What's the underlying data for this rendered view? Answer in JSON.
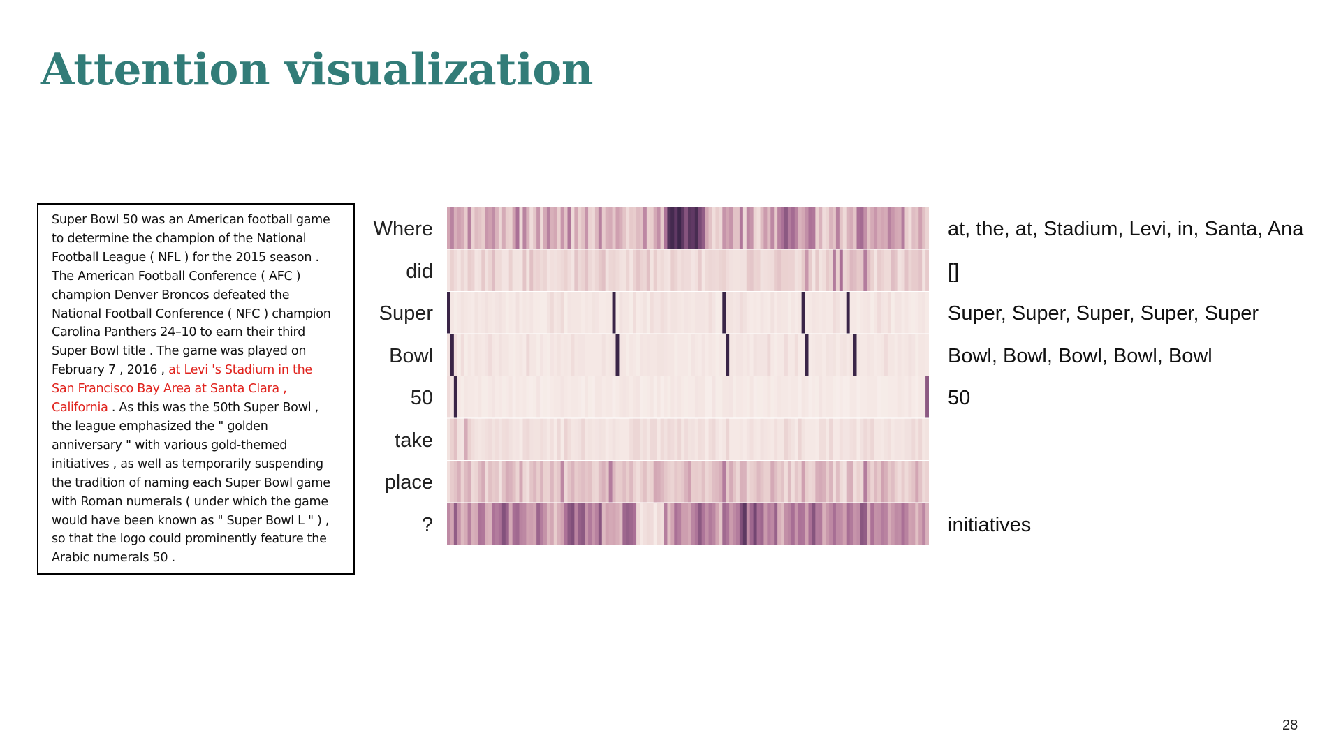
{
  "title": "Attention visualization",
  "page_number": "28",
  "colors": {
    "title": "#327c78",
    "highlight": "#e0231d",
    "heat_low": "#f8f0ec",
    "heat_high": "#2d1e3e"
  },
  "passage": {
    "lines": [
      [
        {
          "text": "Super Bowl 50 was an American football game"
        }
      ],
      [
        {
          "text": "to determine the champion of the National"
        }
      ],
      [
        {
          "text": "Football League ( NFL ) for the 2015 season ."
        }
      ],
      [
        {
          "text": "The American Football Conference ( AFC )"
        }
      ],
      [
        {
          "text": "champion Denver Broncos defeated the"
        }
      ],
      [
        {
          "text": "National Football Conference ( NFC ) champion"
        }
      ],
      [
        {
          "text": "Carolina Panthers 24–10 to earn their third"
        }
      ],
      [
        {
          "text": "Super Bowl title . The game was played on"
        }
      ],
      [
        {
          "text": "February 7 , 2016 , "
        },
        {
          "text": "at Levi 's Stadium in the",
          "hl": true
        }
      ],
      [
        {
          "text": "San Francisco Bay Area at Santa Clara ,",
          "hl": true
        }
      ],
      [
        {
          "text": "California",
          "hl": true
        },
        {
          "text": " . As this was the 50th Super Bowl ,"
        }
      ],
      [
        {
          "text": "the league emphasized the \" golden"
        }
      ],
      [
        {
          "text": "anniversary \" with various gold-themed"
        }
      ],
      [
        {
          "text": "initiatives , as well as temporarily suspending"
        }
      ],
      [
        {
          "text": "the tradition of naming each Super Bowl game"
        }
      ],
      [
        {
          "text": "with Roman numerals ( under which the game"
        }
      ],
      [
        {
          "text": "would have been known as \" Super Bowl L \" ) ,"
        }
      ],
      [
        {
          "text": "so that the logo could prominently feature the"
        }
      ],
      [
        {
          "text": "Arabic numerals 50 ."
        }
      ]
    ]
  },
  "question_words": [
    "Where",
    "did",
    "Super",
    "Bowl",
    "50",
    "take",
    "place",
    "?"
  ],
  "answers": [
    "at, the, at, Stadium, Levi, in, Santa, Ana",
    "[]",
    "Super, Super, Super, Super, Super",
    "Bowl, Bowl, Bowl, Bowl, Bowl",
    "50",
    "",
    "",
    "initiatives"
  ],
  "chart_data": {
    "type": "heatmap",
    "rows": [
      "Where",
      "did",
      "Super",
      "Bowl",
      "50",
      "take",
      "place",
      "?"
    ],
    "n_columns": 140,
    "value_range": [
      0,
      1
    ],
    "colormap": "cubehelix light-to-dark purple",
    "values": [
      [
        0.38,
        0.52,
        0.33,
        0.4,
        0.35,
        0.21,
        0.53,
        0.17,
        0.28,
        0.25,
        0.2,
        0.44,
        0.4,
        0.48,
        0.32,
        0.15,
        0.35,
        0.2,
        0.18,
        0.39,
        0.6,
        0.14,
        0.52,
        0.32,
        0.12,
        0.23,
        0.45,
        0.13,
        0.36,
        0.53,
        0.33,
        0.37,
        0.19,
        0.44,
        0.25,
        0.57,
        0.13,
        0.37,
        0.18,
        0.26,
        0.45,
        0.17,
        0.14,
        0.3,
        0.53,
        0.21,
        0.33,
        0.35,
        0.23,
        0.4,
        0.34,
        0.24,
        0.12,
        0.22,
        0.2,
        0.28,
        0.25,
        0.5,
        0.18,
        0.2,
        0.36,
        0.47,
        0.22,
        0.59,
        0.88,
        0.92,
        0.84,
        0.94,
        0.85,
        0.72,
        0.86,
        0.84,
        0.91,
        0.76,
        0.68,
        0.37,
        0.25,
        0.11,
        0.2,
        0.14,
        0.45,
        0.38,
        0.45,
        0.25,
        0.25,
        0.57,
        0.14,
        0.5,
        0.45,
        0.16,
        0.11,
        0.28,
        0.42,
        0.28,
        0.5,
        0.22,
        0.52,
        0.6,
        0.7,
        0.55,
        0.62,
        0.52,
        0.32,
        0.37,
        0.47,
        0.59,
        0.57,
        0.18,
        0.32,
        0.12,
        0.16,
        0.31,
        0.24,
        0.53,
        0.24,
        0.13,
        0.31,
        0.35,
        0.24,
        0.6,
        0.62,
        0.47,
        0.26,
        0.36,
        0.44,
        0.34,
        0.38,
        0.35,
        0.53,
        0.44,
        0.37,
        0.35,
        0.55,
        0.2,
        0.11,
        0.27,
        0.24,
        0.4,
        0.26,
        0.16
      ],
      [
        0.07,
        0.18,
        0.12,
        0.07,
        0.15,
        0.09,
        0.2,
        0.17,
        0.07,
        0.09,
        0.22,
        0.09,
        0.16,
        0.27,
        0.13,
        0.13,
        0.07,
        0.07,
        0.18,
        0.08,
        0.08,
        0.07,
        0.24,
        0.08,
        0.26,
        0.15,
        0.17,
        0.13,
        0.16,
        0.07,
        0.1,
        0.09,
        0.11,
        0.14,
        0.18,
        0.12,
        0.07,
        0.24,
        0.14,
        0.17,
        0.25,
        0.14,
        0.1,
        0.15,
        0.22,
        0.26,
        0.09,
        0.15,
        0.16,
        0.13,
        0.09,
        0.08,
        0.16,
        0.07,
        0.17,
        0.24,
        0.17,
        0.15,
        0.26,
        0.08,
        0.2,
        0.1,
        0.13,
        0.09,
        0.07,
        0.2,
        0.16,
        0.1,
        0.14,
        0.12,
        0.12,
        0.07,
        0.1,
        0.21,
        0.06,
        0.13,
        0.15,
        0.14,
        0.13,
        0.16,
        0.18,
        0.12,
        0.09,
        0.08,
        0.08,
        0.09,
        0.09,
        0.22,
        0.23,
        0.16,
        0.17,
        0.09,
        0.1,
        0.11,
        0.12,
        0.21,
        0.24,
        0.18,
        0.18,
        0.17,
        0.17,
        0.09,
        0.11,
        0.22,
        0.44,
        0.21,
        0.07,
        0.22,
        0.08,
        0.11,
        0.22,
        0.16,
        0.55,
        0.18,
        0.6,
        0.15,
        0.2,
        0.3,
        0.27,
        0.22,
        0.23,
        0.55,
        0.28,
        0.18,
        0.07,
        0.21,
        0.17,
        0.13,
        0.13,
        0.27,
        0.23,
        0.09,
        0.12,
        0.25,
        0.16,
        0.21,
        0.21,
        0.25,
        0.08,
        0.21
      ],
      [
        0.95,
        0.06,
        0.03,
        0.05,
        0.08,
        0.06,
        0.05,
        0.04,
        0.08,
        0.05,
        0.06,
        0.09,
        0.06,
        0.05,
        0.07,
        0.09,
        0.06,
        0.03,
        0.05,
        0.04,
        0.09,
        0.04,
        0.06,
        0.05,
        0.07,
        0.04,
        0.04,
        0.03,
        0.03,
        0.08,
        0.13,
        0.06,
        0.08,
        0.13,
        0.03,
        0.07,
        0.06,
        0.06,
        0.06,
        0.04,
        0.06,
        0.05,
        0.08,
        0.07,
        0.04,
        0.04,
        0.05,
        0.05,
        0.95,
        0.03,
        0.09,
        0.06,
        0.06,
        0.03,
        0.11,
        0.04,
        0.05,
        0.08,
        0.03,
        0.11,
        0.07,
        0.07,
        0.11,
        0.09,
        0.05,
        0.08,
        0.08,
        0.06,
        0.05,
        0.07,
        0.06,
        0.05,
        0.07,
        0.07,
        0.07,
        0.06,
        0.11,
        0.07,
        0.03,
        0.04,
        0.95,
        0.09,
        0.08,
        0.06,
        0.07,
        0.12,
        0.09,
        0.05,
        0.04,
        0.05,
        0.04,
        0.07,
        0.05,
        0.04,
        0.09,
        0.04,
        0.07,
        0.06,
        0.06,
        0.03,
        0.06,
        0.04,
        0.06,
        0.95,
        0.04,
        0.05,
        0.07,
        0.06,
        0.05,
        0.06,
        0.05,
        0.05,
        0.12,
        0.09,
        0.04,
        0.05,
        0.95,
        0.05,
        0.05,
        0.03,
        0.05,
        0.06,
        0.07,
        0.03,
        0.06,
        0.12,
        0.07,
        0.06,
        0.11,
        0.03,
        0.07,
        0.07,
        0.04,
        0.06,
        0.04,
        0.03,
        0.04,
        0.06,
        0.07,
        0.04
      ],
      [
        0.09,
        0.95,
        0.1,
        0.03,
        0.11,
        0.03,
        0.06,
        0.04,
        0.08,
        0.06,
        0.05,
        0.07,
        0.12,
        0.06,
        0.05,
        0.09,
        0.06,
        0.06,
        0.04,
        0.03,
        0.05,
        0.06,
        0.04,
        0.14,
        0.06,
        0.06,
        0.03,
        0.07,
        0.04,
        0.03,
        0.07,
        0.05,
        0.08,
        0.05,
        0.06,
        0.05,
        0.11,
        0.06,
        0.07,
        0.07,
        0.05,
        0.05,
        0.05,
        0.05,
        0.05,
        0.09,
        0.05,
        0.06,
        0.09,
        0.95,
        0.07,
        0.06,
        0.03,
        0.06,
        0.05,
        0.03,
        0.07,
        0.06,
        0.07,
        0.06,
        0.06,
        0.08,
        0.08,
        0.07,
        0.06,
        0.06,
        0.03,
        0.05,
        0.05,
        0.05,
        0.03,
        0.07,
        0.05,
        0.04,
        0.07,
        0.04,
        0.06,
        0.05,
        0.03,
        0.05,
        0.04,
        0.95,
        0.06,
        0.05,
        0.07,
        0.07,
        0.05,
        0.07,
        0.04,
        0.09,
        0.07,
        0.07,
        0.07,
        0.14,
        0.05,
        0.03,
        0.05,
        0.05,
        0.12,
        0.05,
        0.05,
        0.11,
        0.04,
        0.04,
        0.95,
        0.04,
        0.05,
        0.06,
        0.06,
        0.04,
        0.08,
        0.07,
        0.08,
        0.04,
        0.07,
        0.08,
        0.05,
        0.08,
        0.95,
        0.06,
        0.05,
        0.05,
        0.07,
        0.06,
        0.04,
        0.05,
        0.06,
        0.12,
        0.06,
        0.06,
        0.04,
        0.07,
        0.05,
        0.06,
        0.09,
        0.07,
        0.03,
        0.06,
        0.06,
        0.05
      ],
      [
        0.12,
        0.07,
        0.95,
        0.05,
        0.03,
        0.06,
        0.05,
        0.05,
        0.04,
        0.06,
        0.03,
        0.03,
        0.05,
        0.07,
        0.04,
        0.05,
        0.03,
        0.04,
        0.06,
        0.02,
        0.05,
        0.04,
        0.05,
        0.03,
        0.02,
        0.03,
        0.07,
        0.02,
        0.03,
        0.02,
        0.04,
        0.05,
        0.05,
        0.07,
        0.05,
        0.04,
        0.05,
        0.05,
        0.04,
        0.02,
        0.06,
        0.03,
        0.02,
        0.06,
        0.06,
        0.04,
        0.05,
        0.05,
        0.02,
        0.04,
        0.06,
        0.07,
        0.06,
        0.04,
        0.06,
        0.07,
        0.02,
        0.03,
        0.04,
        0.06,
        0.02,
        0.06,
        0.02,
        0.05,
        0.03,
        0.06,
        0.04,
        0.06,
        0.04,
        0.03,
        0.04,
        0.04,
        0.07,
        0.06,
        0.06,
        0.02,
        0.02,
        0.07,
        0.03,
        0.03,
        0.06,
        0.06,
        0.07,
        0.03,
        0.05,
        0.05,
        0.04,
        0.03,
        0.06,
        0.02,
        0.03,
        0.03,
        0.04,
        0.06,
        0.03,
        0.04,
        0.06,
        0.05,
        0.05,
        0.04,
        0.05,
        0.05,
        0.02,
        0.06,
        0.05,
        0.02,
        0.04,
        0.03,
        0.07,
        0.04,
        0.05,
        0.05,
        0.03,
        0.02,
        0.04,
        0.02,
        0.02,
        0.05,
        0.05,
        0.02,
        0.04,
        0.04,
        0.05,
        0.05,
        0.05,
        0.02,
        0.03,
        0.03,
        0.04,
        0.04,
        0.04,
        0.06,
        0.05,
        0.04,
        0.07,
        0.04,
        0.02,
        0.05,
        0.05,
        0.7
      ],
      [
        0.08,
        0.18,
        0.26,
        0.09,
        0.07,
        0.35,
        0.18,
        0.11,
        0.08,
        0.06,
        0.08,
        0.1,
        0.12,
        0.08,
        0.11,
        0.07,
        0.11,
        0.12,
        0.09,
        0.06,
        0.07,
        0.04,
        0.12,
        0.14,
        0.09,
        0.08,
        0.08,
        0.11,
        0.09,
        0.05,
        0.1,
        0.04,
        0.14,
        0.04,
        0.17,
        0.11,
        0.06,
        0.07,
        0.09,
        0.15,
        0.06,
        0.08,
        0.06,
        0.07,
        0.09,
        0.08,
        0.04,
        0.06,
        0.09,
        0.06,
        0.05,
        0.05,
        0.05,
        0.11,
        0.15,
        0.15,
        0.08,
        0.11,
        0.06,
        0.14,
        0.14,
        0.05,
        0.13,
        0.09,
        0.14,
        0.12,
        0.08,
        0.15,
        0.06,
        0.12,
        0.08,
        0.09,
        0.06,
        0.11,
        0.1,
        0.04,
        0.11,
        0.14,
        0.07,
        0.04,
        0.06,
        0.16,
        0.05,
        0.05,
        0.05,
        0.06,
        0.04,
        0.07,
        0.1,
        0.06,
        0.05,
        0.09,
        0.07,
        0.06,
        0.05,
        0.1,
        0.06,
        0.06,
        0.16,
        0.11,
        0.08,
        0.04,
        0.16,
        0.08,
        0.05,
        0.05,
        0.05,
        0.04,
        0.11,
        0.11,
        0.05,
        0.15,
        0.05,
        0.05,
        0.1,
        0.07,
        0.07,
        0.1,
        0.11,
        0.04,
        0.09,
        0.14,
        0.1,
        0.15,
        0.06,
        0.06,
        0.05,
        0.08,
        0.1,
        0.05,
        0.07,
        0.07,
        0.06,
        0.09,
        0.09,
        0.14,
        0.08,
        0.15,
        0.06,
        0.08
      ],
      [
        0.1,
        0.21,
        0.25,
        0.33,
        0.17,
        0.28,
        0.34,
        0.13,
        0.16,
        0.27,
        0.35,
        0.12,
        0.26,
        0.21,
        0.23,
        0.09,
        0.25,
        0.35,
        0.32,
        0.26,
        0.16,
        0.37,
        0.15,
        0.1,
        0.24,
        0.3,
        0.2,
        0.31,
        0.18,
        0.17,
        0.3,
        0.18,
        0.23,
        0.5,
        0.14,
        0.24,
        0.31,
        0.21,
        0.24,
        0.27,
        0.23,
        0.26,
        0.16,
        0.15,
        0.27,
        0.33,
        0.24,
        0.55,
        0.3,
        0.2,
        0.21,
        0.27,
        0.2,
        0.29,
        0.17,
        0.11,
        0.19,
        0.26,
        0.15,
        0.18,
        0.37,
        0.35,
        0.3,
        0.23,
        0.19,
        0.16,
        0.23,
        0.2,
        0.23,
        0.32,
        0.4,
        0.2,
        0.21,
        0.19,
        0.26,
        0.15,
        0.2,
        0.27,
        0.29,
        0.34,
        0.55,
        0.22,
        0.35,
        0.24,
        0.15,
        0.33,
        0.32,
        0.14,
        0.19,
        0.22,
        0.29,
        0.24,
        0.19,
        0.19,
        0.36,
        0.27,
        0.2,
        0.25,
        0.11,
        0.28,
        0.11,
        0.23,
        0.17,
        0.4,
        0.2,
        0.15,
        0.17,
        0.34,
        0.36,
        0.33,
        0.21,
        0.31,
        0.11,
        0.27,
        0.13,
        0.09,
        0.32,
        0.34,
        0.11,
        0.18,
        0.14,
        0.55,
        0.28,
        0.17,
        0.29,
        0.22,
        0.39,
        0.33,
        0.22,
        0.27,
        0.18,
        0.12,
        0.21,
        0.13,
        0.2,
        0.25,
        0.38,
        0.25,
        0.13,
        0.17
      ],
      [
        0.49,
        0.38,
        0.68,
        0.45,
        0.29,
        0.35,
        0.53,
        0.33,
        0.36,
        0.59,
        0.57,
        0.34,
        0.31,
        0.59,
        0.55,
        0.6,
        0.73,
        0.65,
        0.36,
        0.61,
        0.63,
        0.52,
        0.5,
        0.39,
        0.41,
        0.38,
        0.65,
        0.55,
        0.46,
        0.3,
        0.37,
        0.2,
        0.33,
        0.39,
        0.59,
        0.7,
        0.74,
        0.52,
        0.67,
        0.7,
        0.45,
        0.56,
        0.45,
        0.53,
        0.71,
        0.29,
        0.39,
        0.36,
        0.38,
        0.34,
        0.27,
        0.64,
        0.67,
        0.64,
        0.6,
        0.14,
        0.05,
        0.1,
        0.13,
        0.12,
        0.04,
        0.13,
        0.1,
        0.54,
        0.26,
        0.38,
        0.6,
        0.54,
        0.41,
        0.41,
        0.36,
        0.51,
        0.58,
        0.7,
        0.58,
        0.47,
        0.56,
        0.51,
        0.38,
        0.23,
        0.63,
        0.58,
        0.42,
        0.49,
        0.55,
        0.74,
        0.85,
        0.48,
        0.64,
        0.78,
        0.61,
        0.64,
        0.43,
        0.54,
        0.5,
        0.66,
        0.34,
        0.27,
        0.47,
        0.51,
        0.61,
        0.45,
        0.59,
        0.58,
        0.39,
        0.6,
        0.72,
        0.55,
        0.56,
        0.33,
        0.43,
        0.5,
        0.61,
        0.49,
        0.48,
        0.4,
        0.61,
        0.56,
        0.45,
        0.48,
        0.71,
        0.68,
        0.34,
        0.59,
        0.46,
        0.47,
        0.55,
        0.52,
        0.35,
        0.43,
        0.49,
        0.48,
        0.6,
        0.52,
        0.39,
        0.41,
        0.26,
        0.4,
        0.51,
        0.32
      ]
    ]
  }
}
